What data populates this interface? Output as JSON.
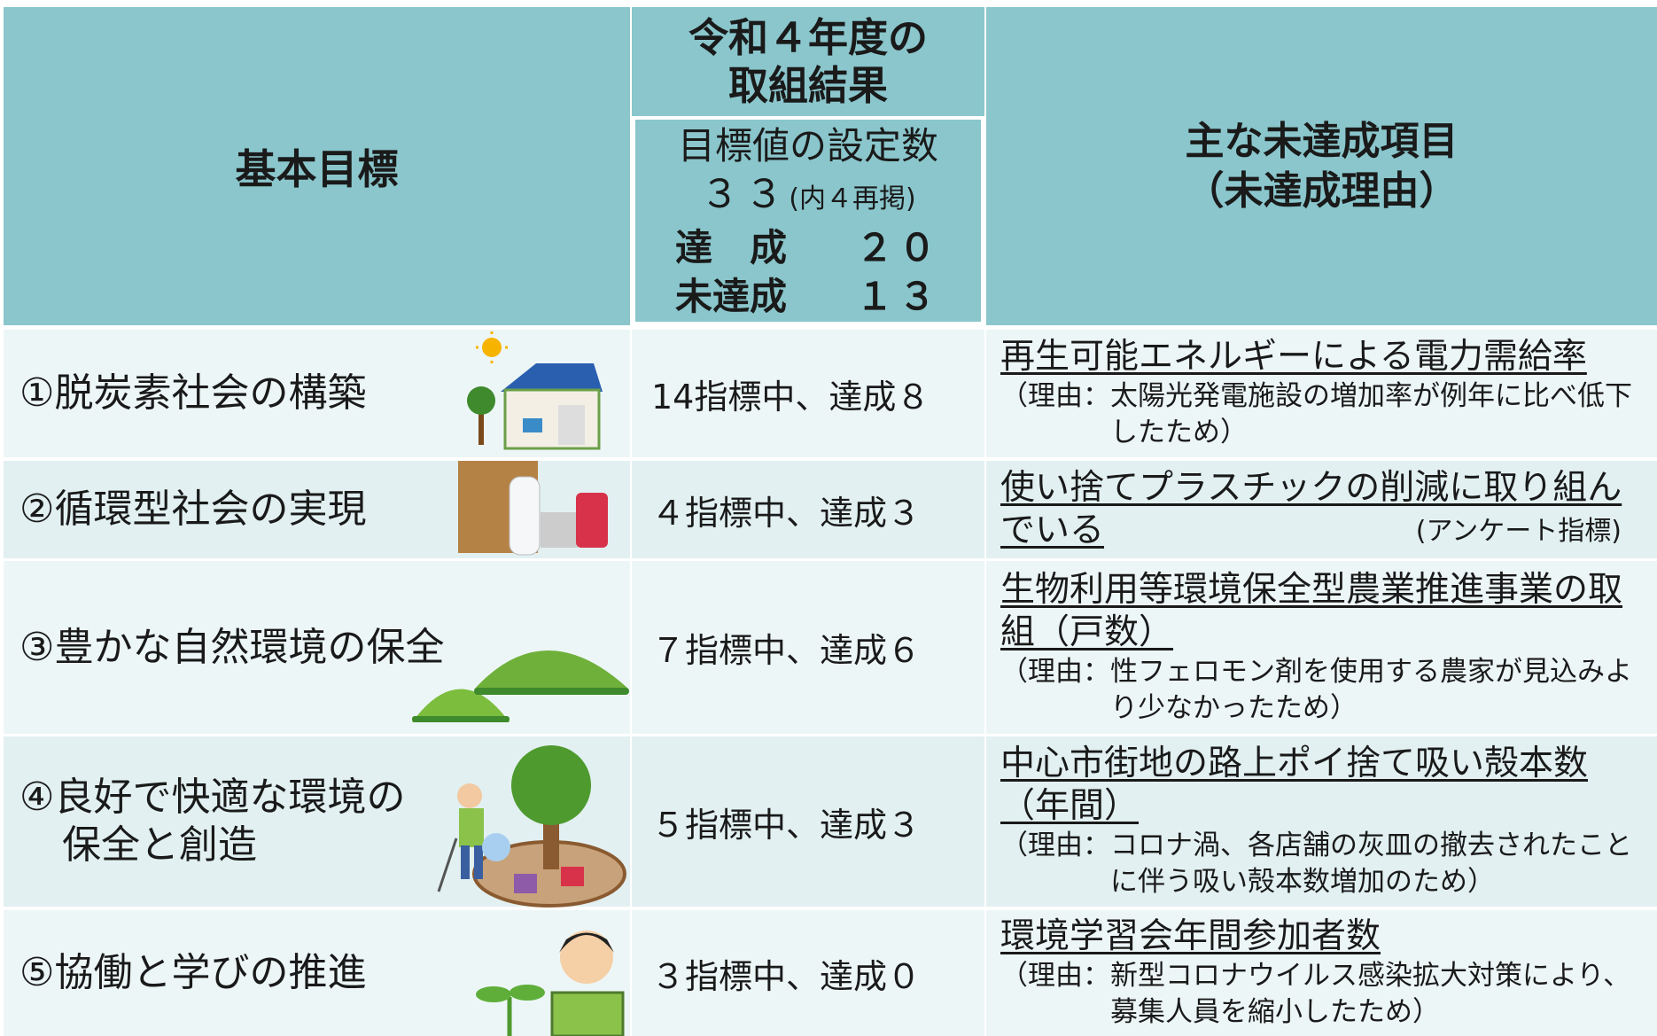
{
  "header": {
    "goal": "基本目標",
    "result_title": [
      "令和４年度の",
      "取組結果"
    ],
    "targets_label": "目標値の設定数",
    "targets_count": "３３",
    "targets_note": "(内４再掲)",
    "achieved_label": "達　成",
    "achieved_count": "２０",
    "unachieved_label": "未達成",
    "unachieved_count": "１３",
    "items_title": [
      "主な未達成項目",
      "（未達成理由）"
    ]
  },
  "rows": [
    {
      "goal": [
        "①脱炭素社会の構築"
      ],
      "result": "14指標中、達成８",
      "item": "再生可能エネルギーによる電力需給率",
      "reason": "（理由：太陽光発電施設の増加率が例年に比べ低下したため）"
    },
    {
      "goal": [
        "②循環型社会の実現"
      ],
      "result": "４指標中、達成３",
      "item": "使い捨てプラスチックの削減に取り組んでいる",
      "note": "(アンケート指標)"
    },
    {
      "goal": [
        "③豊かな自然環境の保全"
      ],
      "result": "７指標中、達成６",
      "item": "生物利用等環境保全型農業推進事業の取組（戸数）",
      "reason": "（理由：性フェロモン剤を使用する農家が見込みより少なかったため）"
    },
    {
      "goal": [
        "④良好で快適な環境の",
        "保全と創造"
      ],
      "result": "５指標中、達成３",
      "item": "中心市街地の路上ポイ捨て吸い殻本数（年間）",
      "reason": "（理由：コロナ渦、各店舗の灰皿の撤去されたことに伴う吸い殻本数増加のため）"
    },
    {
      "goal": [
        "⑤協働と学びの推進"
      ],
      "result": "３指標中、達成０",
      "item": "環境学習会年間参加者数",
      "reason": "（理由：新型コロナウイルス感染拡大対策により、募集人員を縮小したため）"
    }
  ]
}
